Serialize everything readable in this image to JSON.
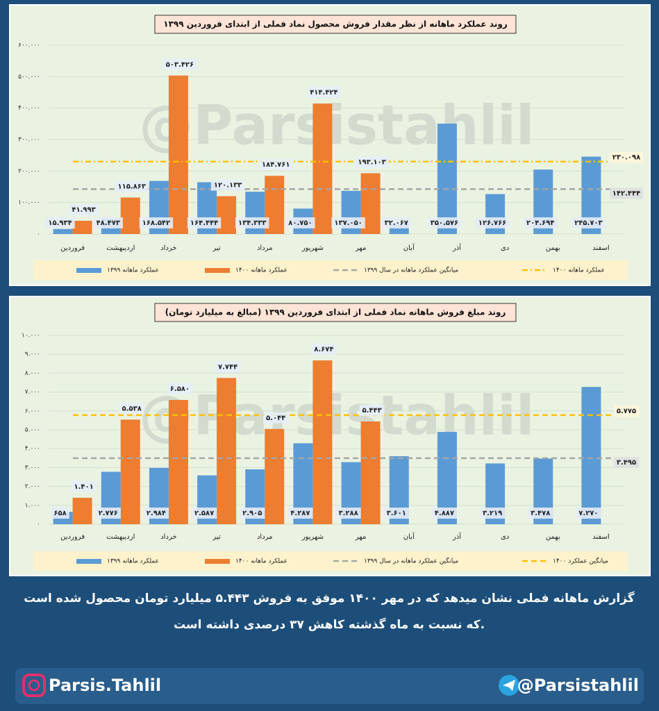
{
  "chart_data": [
    {
      "type": "bar",
      "title": "روند عملکرد ماهانه از نظر مقدار فروش محصول نماد فملی از ابتدای فروردین ۱۳۹۹",
      "watermark": "@Parsistahlil",
      "categories": [
        "فروردین",
        "اردیبهشت",
        "خرداد",
        "تیر",
        "مرداد",
        "شهریور",
        "مهر",
        "آبان",
        "آذر",
        "دی",
        "بهمن",
        "اسفند"
      ],
      "series": [
        {
          "name": "عملکرد ماهانه ۱۳۹۹",
          "color": "#5b9bd5",
          "values": [
            15934,
            48473,
            168542,
            164444,
            134333,
            80750,
            137050,
            32067,
            350576,
            126766,
            204694,
            245703
          ],
          "value_labels": [
            "۱۵.۹۳۴",
            "۴۸.۴۷۳",
            "۱۶۸.۵۴۲",
            "۱۶۴.۴۴۴",
            "۱۳۴.۳۳۳",
            "۸۰.۷۵۰",
            "۱۳۷.۰۵۰",
            "۳۲.۰۶۷",
            "۳۵۰.۵۷۶",
            "۱۲۶.۷۶۶",
            "۲۰۴.۶۹۴",
            "۲۴۵.۷۰۳"
          ]
        },
        {
          "name": "عملکرد ماهانه ۱۴۰۰",
          "color": "#ed7d31",
          "values": [
            41993,
            115863,
            503426,
            120133,
            184761,
            414424,
            193103,
            null,
            null,
            null,
            null,
            null
          ],
          "value_labels": [
            "۴۱.۹۹۳",
            "۱۱۵.۸۶۳",
            "۵۰۳.۴۲۶",
            "۱۲۰.۱۳۳",
            "۱۸۴.۷۶۱",
            "۴۱۴.۴۲۴",
            "۱۹۳.۱۰۳",
            null,
            null,
            null,
            null,
            null
          ]
        }
      ],
      "reference_lines": [
        {
          "name": "میانگین عملکرد ماهانه در سال ۱۳۹۹",
          "value": 142444,
          "value_label": "۱۴۲.۴۴۴",
          "color": "#a6a6a6",
          "style": "dash"
        },
        {
          "name": "عملکرد ماهانه ۱۴۰۰",
          "value": 230098,
          "value_label": "۲۳۰.۰۹۸",
          "color": "#ffc000",
          "style": "dashdot"
        }
      ],
      "ylim": [
        0,
        600000
      ],
      "yticks": [
        {
          "value": 0,
          "label": "۰"
        },
        {
          "value": 100000,
          "label": "۱۰۰.۰۰۰"
        },
        {
          "value": 200000,
          "label": "۲۰۰.۰۰۰"
        },
        {
          "value": 300000,
          "label": "۳۰۰.۰۰۰"
        },
        {
          "value": 400000,
          "label": "۴۰۰.۰۰۰"
        },
        {
          "value": 500000,
          "label": "۵۰۰.۰۰۰"
        },
        {
          "value": 600000,
          "label": "۶۰۰.۰۰۰"
        }
      ],
      "grid": true
    },
    {
      "type": "bar",
      "title": "روند مبلغ فروش ماهانه نماد فملی از ابتدای فروردین ۱۳۹۹ (مبالغ به میلیارد تومان)",
      "watermark": "@Parsistahlil",
      "categories": [
        "فروردین",
        "اردیبهشت",
        "خرداد",
        "تیر",
        "مرداد",
        "شهریور",
        "مهر",
        "آبان",
        "آذر",
        "دی",
        "بهمن",
        "اسفند"
      ],
      "series": [
        {
          "name": "عملکرد ماهانه ۱۳۹۹",
          "color": "#5b9bd5",
          "values": [
            658,
            2776,
            2984,
            2587,
            2905,
            4287,
            3288,
            3601,
            4887,
            3219,
            3478,
            7270
          ],
          "value_labels": [
            "۶۵۸",
            "۲.۷۷۶",
            "۲.۹۸۴",
            "۲.۵۸۷",
            "۲.۹۰۵",
            "۴.۲۸۷",
            "۳.۲۸۸",
            "۳.۶۰۱",
            "۴.۸۸۷",
            "۳.۲۱۹",
            "۳.۴۷۸",
            "۷.۲۷۰"
          ]
        },
        {
          "name": "عملکرد ماهانه ۱۴۰۰",
          "color": "#ed7d31",
          "values": [
            1401,
            5538,
            6580,
            7744,
            5044,
            8674,
            5443,
            null,
            null,
            null,
            null,
            null
          ],
          "value_labels": [
            "۱.۴۰۱",
            "۵.۵۳۸",
            "۶.۵۸۰",
            "۷.۷۴۴",
            "۵.۰۴۴",
            "۸.۶۷۴",
            "۵.۴۴۳",
            null,
            null,
            null,
            null,
            null
          ]
        }
      ],
      "reference_lines": [
        {
          "name": "میانگین عملکرد ماهانه در سال ۱۳۹۹",
          "value": 3495,
          "value_label": "۳.۴۹۵",
          "color": "#a6a6a6",
          "style": "dash"
        },
        {
          "name": "میانگین عملکرد ۱۴۰۰",
          "value": 5775,
          "value_label": "۵.۷۷۵",
          "color": "#ffc000",
          "style": "dash"
        }
      ],
      "ylim": [
        0,
        10000
      ],
      "yticks": [
        {
          "value": 0,
          "label": "۰"
        },
        {
          "value": 1000,
          "label": "۱.۰۰۰"
        },
        {
          "value": 2000,
          "label": "۲.۰۰۰"
        },
        {
          "value": 3000,
          "label": "۳.۰۰۰"
        },
        {
          "value": 4000,
          "label": "۴.۰۰۰"
        },
        {
          "value": 5000,
          "label": "۵.۰۰۰"
        },
        {
          "value": 6000,
          "label": "۶.۰۰۰"
        },
        {
          "value": 7000,
          "label": "۷.۰۰۰"
        },
        {
          "value": 8000,
          "label": "۸.۰۰۰"
        },
        {
          "value": 9000,
          "label": "۹.۰۰۰"
        },
        {
          "value": 10000,
          "label": "۱۰.۰۰۰"
        }
      ],
      "grid": true
    }
  ],
  "footer": {
    "lines": [
      "گزارش ماهانه فملی نشان میدهد که در مهر ۱۴۰۰ موفق به فروش ۵.۴۴۳ میلیارد تومان محصول شده است",
      "که نسبت به ماه گذشته کاهش ۳۷ درصدی داشته است."
    ]
  },
  "social": {
    "instagram": "Parsis.Tahlil",
    "telegram": "@Parsistahlil"
  }
}
